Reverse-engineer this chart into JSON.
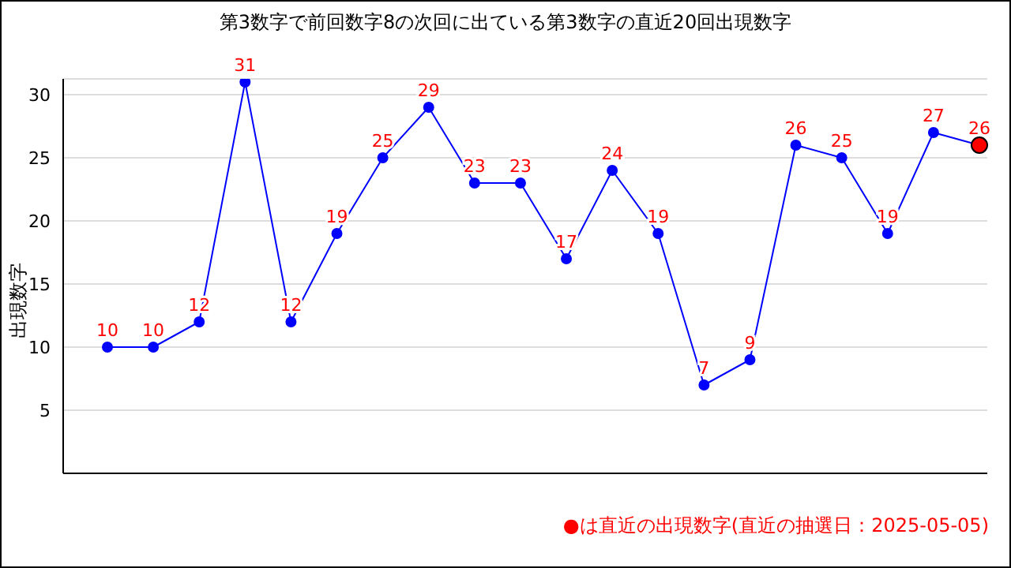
{
  "chart_data": {
    "type": "line",
    "title": "第3数字で前回数字8の次回に出ている第3数字の直近20回出現数字",
    "ylabel": "出現数字",
    "categories": [
      null,
      null,
      null,
      null,
      null,
      null,
      null,
      null,
      null,
      null,
      null,
      null,
      null,
      null,
      null,
      null,
      null,
      null,
      null,
      null
    ],
    "series": [
      {
        "color": "#0000ff",
        "values": [
          10,
          10,
          12,
          31,
          12,
          19,
          25,
          29,
          23,
          23,
          17,
          24,
          19,
          7,
          9,
          26,
          25,
          19,
          27,
          26
        ],
        "colors": [
          "#0000ff",
          "#0000ff",
          "#0000ff",
          "#0000ff",
          "#0000ff",
          "#0000ff",
          "#0000ff",
          "#0000ff",
          "#0000ff",
          "#0000ff",
          "#0000ff",
          "#0000ff",
          "#0000ff",
          "#0000ff",
          "#0000ff",
          "#0000ff",
          "#0000ff",
          "#0000ff",
          "#0000ff",
          "#ff0000"
        ]
      }
    ],
    "ylim": [
      0,
      31.25
    ],
    "yticks": [
      5,
      10,
      15,
      20,
      25,
      30
    ],
    "grid": "y",
    "marker": "circle",
    "line_style": "solid",
    "data_labels": true,
    "tick_labels": "y",
    "annotations": [
      "●は直近の出現数字(直近の抽選日：2025-05-05)"
    ]
  }
}
